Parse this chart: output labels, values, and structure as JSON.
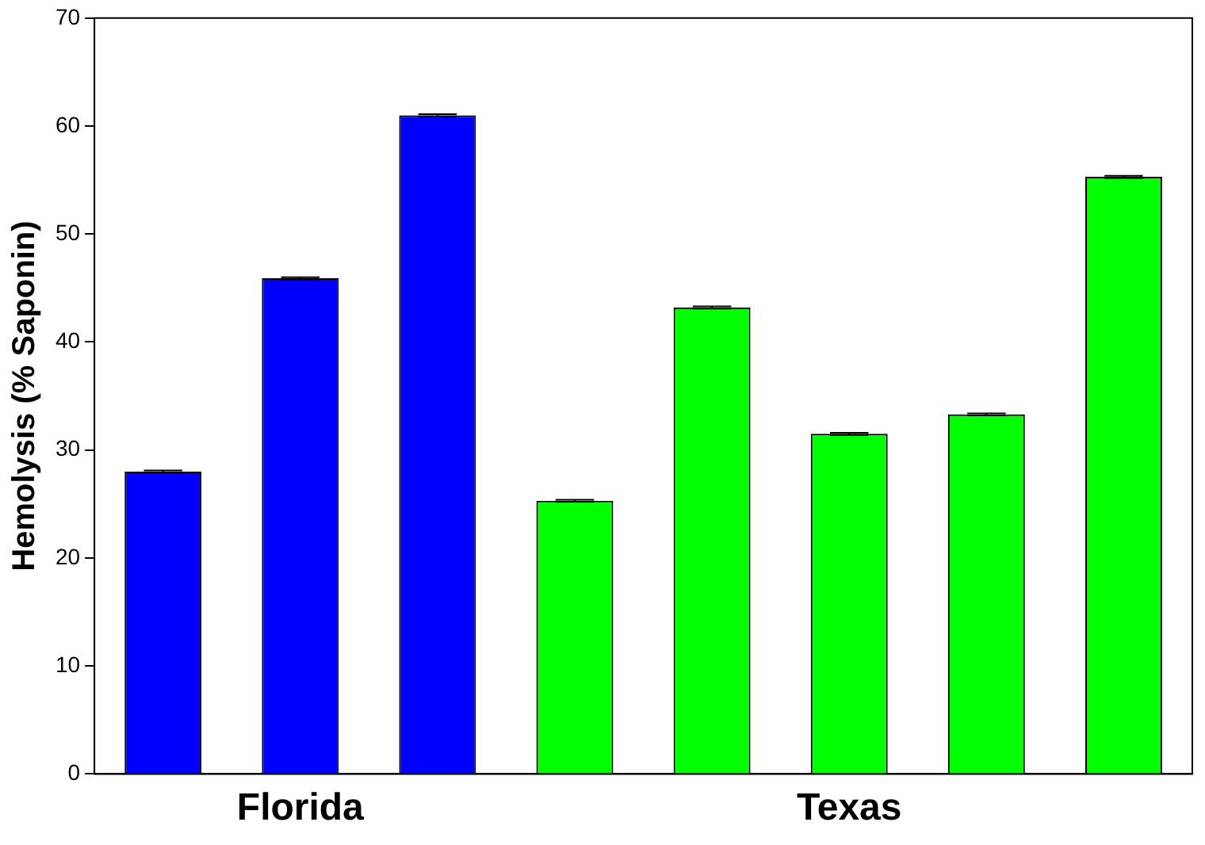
{
  "chart_data": {
    "type": "bar",
    "ylabel": "Hemolysis (% Saponin)",
    "categories": [
      null,
      "Florida",
      null,
      null,
      null,
      "Texas",
      null,
      null
    ],
    "values": [
      28,
      45.9,
      61,
      25.3,
      43.2,
      31.5,
      33.3,
      55.3
    ],
    "errors": [
      0.1,
      0.1,
      0.1,
      0.1,
      0.1,
      0.1,
      0.1,
      0.1
    ],
    "colors": [
      "#0000ff",
      "#0000ff",
      "#0000ff",
      "#00ff00",
      "#00ff00",
      "#00ff00",
      "#00ff00",
      "#00ff00"
    ],
    "ylim": [
      0,
      70
    ],
    "yticks": [
      0,
      10,
      20,
      30,
      40,
      50,
      60,
      70
    ],
    "grid": false,
    "legend": false
  }
}
